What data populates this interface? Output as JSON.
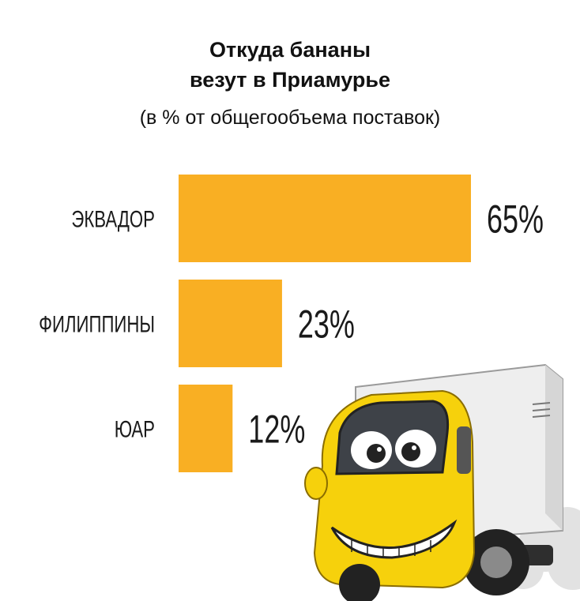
{
  "title_line1": "Откуда бананы",
  "title_line2": "везут в Приамурье",
  "subtitle": "(в % от общегообъема поставок)",
  "colors": {
    "bar": "#F9AF23"
  },
  "chart_data": {
    "type": "bar",
    "orientation": "horizontal",
    "categories": [
      "ЭКВАДОР",
      "ФИЛИППИНЫ",
      "ЮАР"
    ],
    "values": [
      65,
      23,
      12
    ],
    "value_labels": [
      "65%",
      "23%",
      "12%"
    ],
    "title": "Откуда бананы везут в Приамурье",
    "subtitle": "(в % от общегообъема поставок)",
    "unit": "%",
    "xlim": [
      0,
      65
    ],
    "grid": false,
    "legend": "none"
  }
}
